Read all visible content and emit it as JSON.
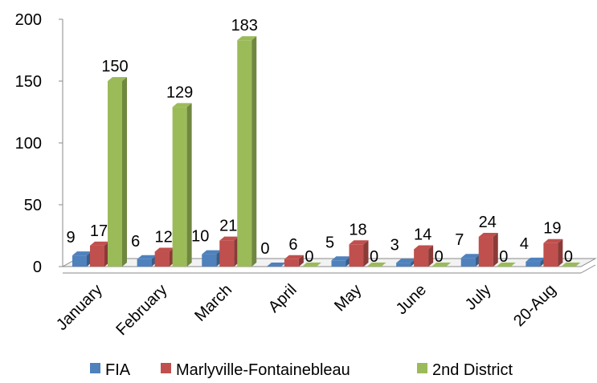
{
  "chart_data": {
    "type": "bar",
    "style": "3d-clustered-column",
    "categories": [
      "January",
      "February",
      "March",
      "April",
      "May",
      "June",
      "July",
      "20-Aug"
    ],
    "series": [
      {
        "name": "FIA",
        "values": [
          9,
          6,
          10,
          0,
          5,
          3,
          7,
          4
        ],
        "color": "#4F81BD"
      },
      {
        "name": "Marlyville-Fontainebleau",
        "values": [
          17,
          12,
          21,
          6,
          18,
          14,
          24,
          19
        ],
        "color": "#C0504D"
      },
      {
        "name": "2nd District",
        "values": [
          150,
          129,
          183,
          0,
          0,
          0,
          0,
          0
        ],
        "color": "#9BBB59"
      }
    ],
    "ylim": [
      0,
      200
    ],
    "yticks": [
      0,
      50,
      100,
      150,
      200
    ],
    "grid": false,
    "legend": "bottom",
    "data_labels": true
  }
}
